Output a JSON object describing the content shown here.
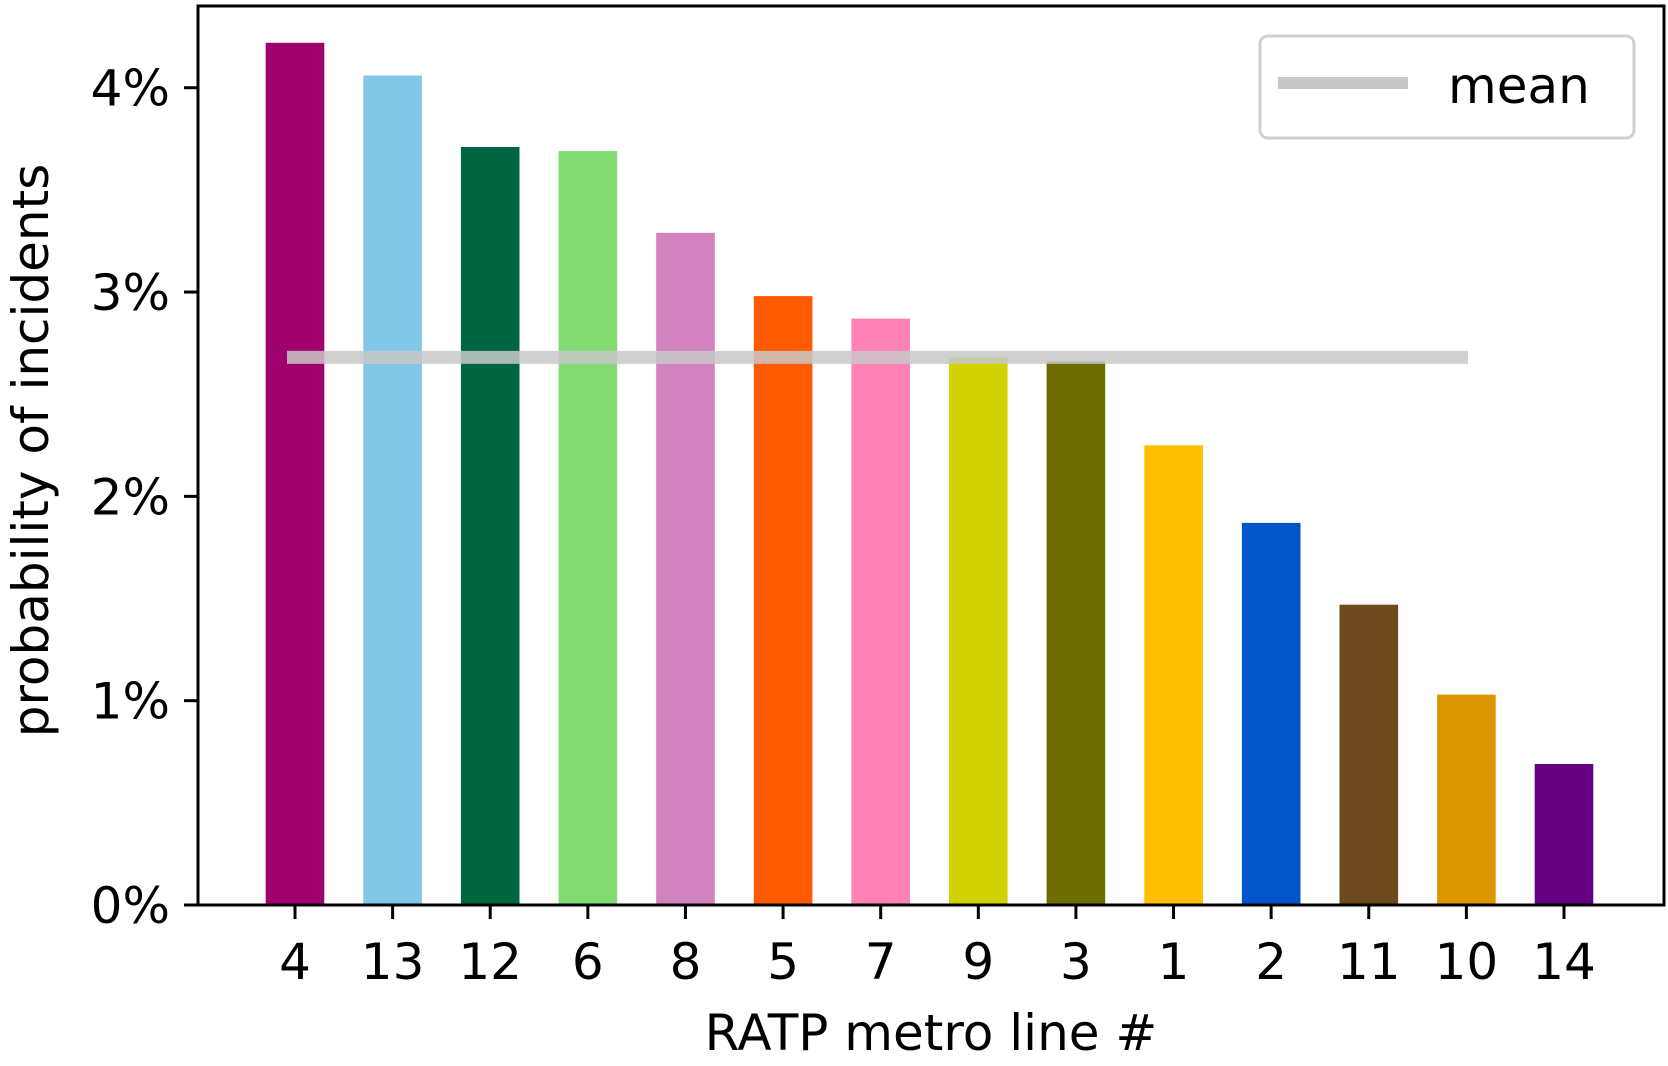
{
  "chart_data": {
    "type": "bar",
    "categories": [
      "4",
      "13",
      "12",
      "6",
      "8",
      "5",
      "7",
      "9",
      "3",
      "1",
      "2",
      "11",
      "10",
      "14"
    ],
    "values": [
      4.22,
      4.06,
      3.71,
      3.69,
      3.29,
      2.98,
      2.87,
      2.68,
      2.66,
      2.25,
      1.87,
      1.47,
      1.03,
      0.69
    ],
    "value_unit": "%",
    "bar_colors": [
      "#a0006e",
      "#82c8e6",
      "#006641",
      "#82dc73",
      "#d282be",
      "#ff5a00",
      "#ff82b4",
      "#d2d200",
      "#6e6e00",
      "#ffbe00",
      "#0055c8",
      "#6e491e",
      "#dc9600",
      "#640082"
    ],
    "mean": {
      "label": "mean",
      "value": 2.68,
      "color": "#c8c8c8",
      "opacity": 0.85
    },
    "xlabel": "RATP metro line #",
    "ylabel": "probability of incidents",
    "ylim": [
      0,
      4.4
    ],
    "yticks": [
      0,
      1,
      2,
      3,
      4
    ],
    "ytick_labels": [
      "0%",
      "1%",
      "2%",
      "3%",
      "4%"
    ],
    "legend_placement": "top-right",
    "grid": false
  }
}
